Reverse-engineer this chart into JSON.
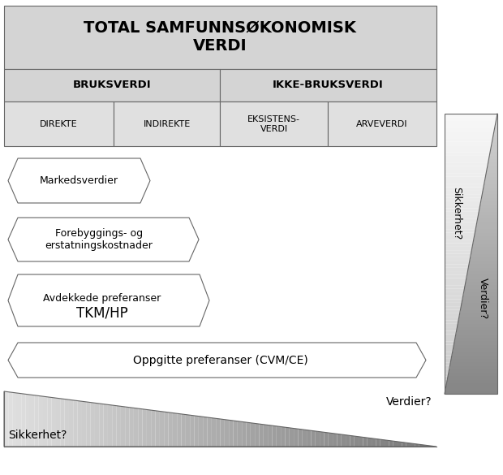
{
  "fig_width": 6.2,
  "fig_height": 5.85,
  "dpi": 100,
  "bg_color": "#ffffff",
  "header_bg": "#d4d4d4",
  "cell_bg": "#d4d4d4",
  "cell_bg2": "#e0e0e0",
  "title_text": "TOTAL SAMFUNNSØKONOMISK\nVERDI",
  "row2_left_text": "BRUKSVERDI",
  "row2_right_text": "IKKE-BRUKSVERDI",
  "row3_cells": [
    "DIREKTE",
    "INDIREKTE",
    "EKSISTENS-\nVERDI",
    "ARVEVERDI"
  ],
  "shape1_text": "Markedsverdier",
  "shape2_text": "Forebyggings- og\nerstatningskostnader",
  "shape3_line1": "Avdekkede preferanser",
  "shape3_line2": "TKM/HP",
  "shape4_text": "Oppgitte preferanser (CVM/CE)",
  "bottom_left_text": "Sikkerhet?",
  "bottom_right_text": "Verdier?",
  "side_top_text": "Sikkerhet?",
  "side_bottom_text": "Verdier?"
}
